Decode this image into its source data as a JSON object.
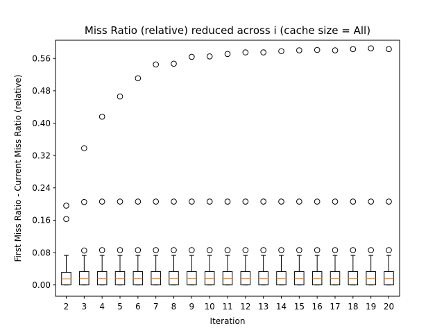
{
  "chart_data": {
    "type": "box",
    "title": "Miss Ratio (relative) reduced across i (cache size = All)",
    "xlabel": "Iteration",
    "ylabel": "First Miss Ratio - Current Miss Ratio (relative)",
    "categories": [
      "2",
      "3",
      "4",
      "5",
      "6",
      "7",
      "8",
      "9",
      "10",
      "11",
      "12",
      "13",
      "14",
      "15",
      "16",
      "17",
      "18",
      "19",
      "20"
    ],
    "ylim": [
      -0.028,
      0.605
    ],
    "yticks": [
      0.0,
      0.08,
      0.16,
      0.24,
      0.32,
      0.4,
      0.48,
      0.56
    ],
    "ytick_labels": [
      "0.00",
      "0.08",
      "0.16",
      "0.24",
      "0.32",
      "0.40",
      "0.48",
      "0.56"
    ],
    "grid": false,
    "boxes": [
      {
        "category": "2",
        "q1": 0.0,
        "median": 0.015,
        "q3": 0.031,
        "whisker_low": 0.0,
        "whisker_high": 0.073,
        "outliers": [
          0.163,
          0.196
        ]
      },
      {
        "category": "3",
        "q1": 0.0,
        "median": 0.016,
        "q3": 0.033,
        "whisker_low": 0.0,
        "whisker_high": 0.073,
        "outliers": [
          0.085,
          0.205,
          0.338
        ]
      },
      {
        "category": "4",
        "q1": 0.0,
        "median": 0.016,
        "q3": 0.033,
        "whisker_low": 0.0,
        "whisker_high": 0.073,
        "outliers": [
          0.086,
          0.206,
          0.416
        ]
      },
      {
        "category": "5",
        "q1": 0.0,
        "median": 0.016,
        "q3": 0.033,
        "whisker_low": 0.0,
        "whisker_high": 0.073,
        "outliers": [
          0.086,
          0.206,
          0.466
        ]
      },
      {
        "category": "6",
        "q1": 0.0,
        "median": 0.016,
        "q3": 0.033,
        "whisker_low": 0.0,
        "whisker_high": 0.073,
        "outliers": [
          0.086,
          0.206,
          0.511
        ]
      },
      {
        "category": "7",
        "q1": 0.0,
        "median": 0.016,
        "q3": 0.033,
        "whisker_low": 0.0,
        "whisker_high": 0.073,
        "outliers": [
          0.086,
          0.206,
          0.545
        ]
      },
      {
        "category": "8",
        "q1": 0.0,
        "median": 0.016,
        "q3": 0.033,
        "whisker_low": 0.0,
        "whisker_high": 0.073,
        "outliers": [
          0.086,
          0.206,
          0.547
        ]
      },
      {
        "category": "9",
        "q1": 0.0,
        "median": 0.016,
        "q3": 0.033,
        "whisker_low": 0.0,
        "whisker_high": 0.073,
        "outliers": [
          0.086,
          0.206,
          0.564
        ]
      },
      {
        "category": "10",
        "q1": 0.0,
        "median": 0.016,
        "q3": 0.033,
        "whisker_low": 0.0,
        "whisker_high": 0.073,
        "outliers": [
          0.086,
          0.206,
          0.565
        ]
      },
      {
        "category": "11",
        "q1": 0.0,
        "median": 0.016,
        "q3": 0.033,
        "whisker_low": 0.0,
        "whisker_high": 0.073,
        "outliers": [
          0.086,
          0.206,
          0.571
        ]
      },
      {
        "category": "12",
        "q1": 0.0,
        "median": 0.016,
        "q3": 0.033,
        "whisker_low": 0.0,
        "whisker_high": 0.073,
        "outliers": [
          0.086,
          0.206,
          0.575
        ]
      },
      {
        "category": "13",
        "q1": 0.0,
        "median": 0.016,
        "q3": 0.033,
        "whisker_low": 0.0,
        "whisker_high": 0.073,
        "outliers": [
          0.086,
          0.206,
          0.575
        ]
      },
      {
        "category": "14",
        "q1": 0.0,
        "median": 0.016,
        "q3": 0.033,
        "whisker_low": 0.0,
        "whisker_high": 0.073,
        "outliers": [
          0.086,
          0.206,
          0.578
        ]
      },
      {
        "category": "15",
        "q1": 0.0,
        "median": 0.016,
        "q3": 0.033,
        "whisker_low": 0.0,
        "whisker_high": 0.073,
        "outliers": [
          0.086,
          0.206,
          0.58
        ]
      },
      {
        "category": "16",
        "q1": 0.0,
        "median": 0.016,
        "q3": 0.033,
        "whisker_low": 0.0,
        "whisker_high": 0.073,
        "outliers": [
          0.086,
          0.206,
          0.581
        ]
      },
      {
        "category": "17",
        "q1": 0.0,
        "median": 0.016,
        "q3": 0.033,
        "whisker_low": 0.0,
        "whisker_high": 0.073,
        "outliers": [
          0.086,
          0.206,
          0.58
        ]
      },
      {
        "category": "18",
        "q1": 0.0,
        "median": 0.016,
        "q3": 0.033,
        "whisker_low": 0.0,
        "whisker_high": 0.073,
        "outliers": [
          0.086,
          0.206,
          0.583
        ]
      },
      {
        "category": "19",
        "q1": 0.0,
        "median": 0.016,
        "q3": 0.033,
        "whisker_low": 0.0,
        "whisker_high": 0.073,
        "outliers": [
          0.086,
          0.206,
          0.585
        ]
      },
      {
        "category": "20",
        "q1": 0.0,
        "median": 0.016,
        "q3": 0.033,
        "whisker_low": 0.0,
        "whisker_high": 0.073,
        "outliers": [
          0.086,
          0.206,
          0.583
        ]
      }
    ],
    "colors": {
      "box": "#000000",
      "median": "#ff7f0e",
      "outlier": "#000000",
      "axis": "#000000",
      "background": "#ffffff"
    }
  }
}
